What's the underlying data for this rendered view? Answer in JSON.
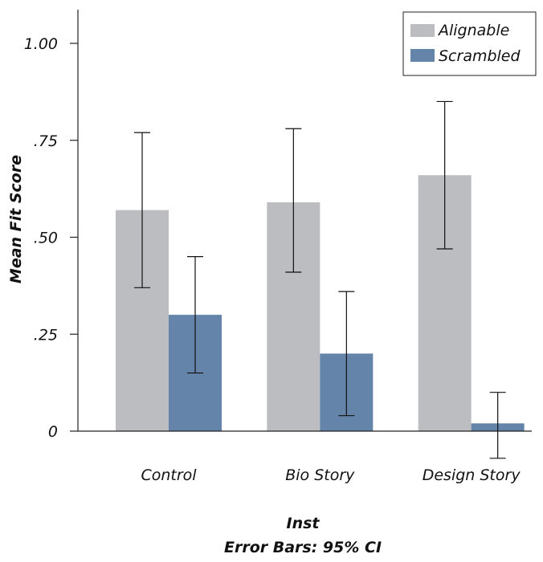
{
  "chart_data": {
    "type": "bar",
    "title": "",
    "xlabel": "Inst",
    "ylabel": "Mean Fit Score",
    "footnote": "Error Bars: 95% CI",
    "categories": [
      "Control",
      "Bio Story",
      "Design Story"
    ],
    "ylim": [
      0,
      1.1
    ],
    "yticks": [
      {
        "value": 0,
        "label": "0"
      },
      {
        "value": 0.25,
        "label": ".25"
      },
      {
        "value": 0.5,
        "label": ".50"
      },
      {
        "value": 0.75,
        "label": ".75"
      },
      {
        "value": 1.0,
        "label": "1.00"
      }
    ],
    "grid": false,
    "legend_position": "top-right",
    "series": [
      {
        "name": "Alignable",
        "color": "#bcbdc0",
        "values": [
          0.57,
          0.59,
          0.66
        ],
        "error_upper": [
          0.77,
          0.78,
          0.85
        ],
        "error_lower": [
          0.37,
          0.41,
          0.47
        ]
      },
      {
        "name": "Scrambled",
        "color": "#6584a9",
        "values": [
          0.3,
          0.2,
          0.02
        ],
        "error_upper": [
          0.45,
          0.36,
          0.1
        ],
        "error_lower": [
          0.15,
          0.04,
          -0.07
        ]
      }
    ]
  }
}
